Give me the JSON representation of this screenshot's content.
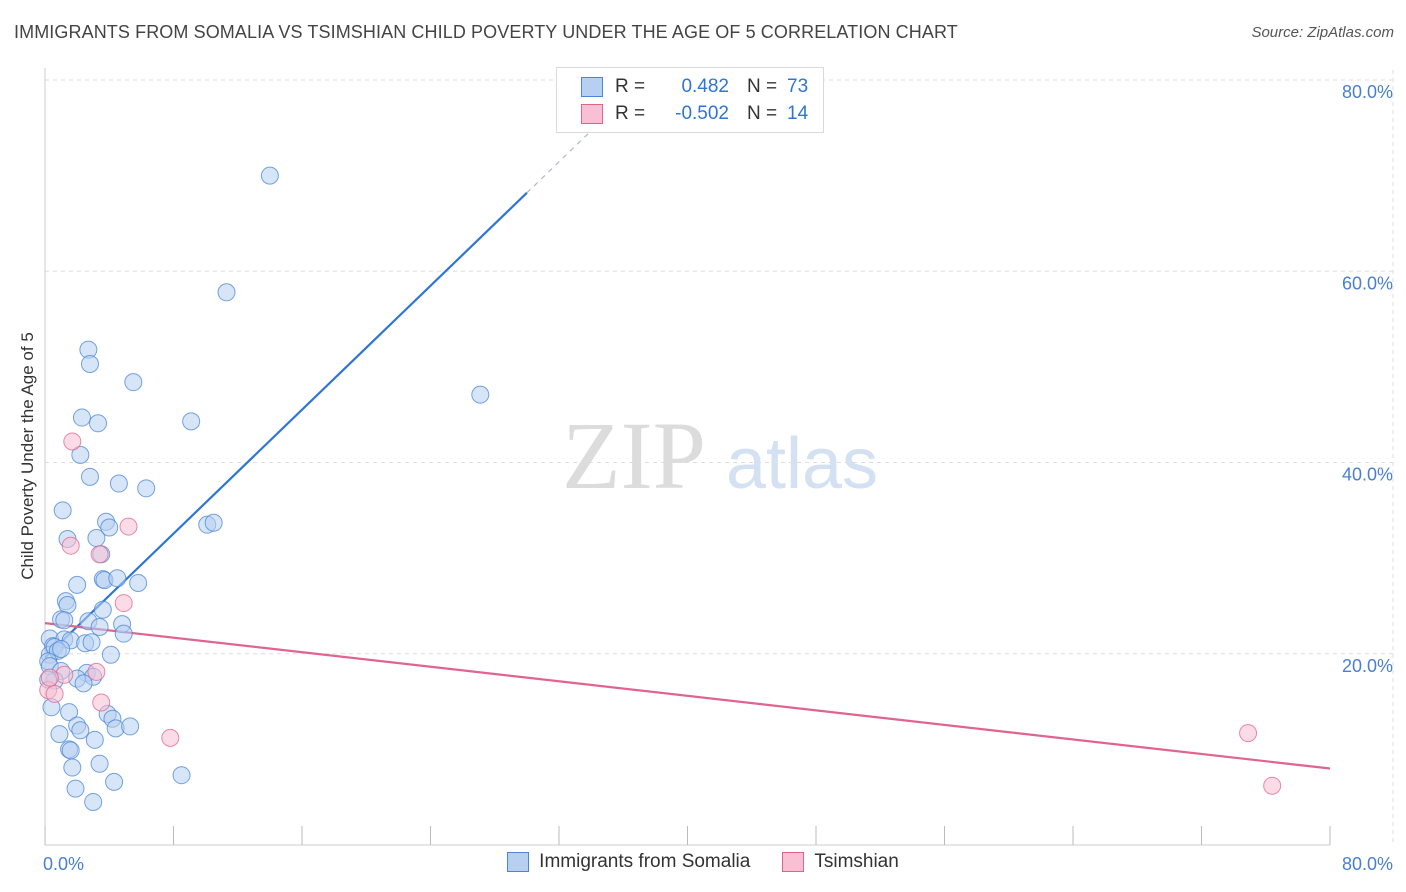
{
  "title": "IMMIGRANTS FROM SOMALIA VS TSIMSHIAN CHILD POVERTY UNDER THE AGE OF 5 CORRELATION CHART",
  "source": "Source: ZipAtlas.com",
  "watermark": {
    "part1": "ZIP",
    "part2": "atlas"
  },
  "colors": {
    "blue": "#4a86d4",
    "blue_fill": "#b7d0f2",
    "blue_line": "#2e75d6",
    "pink": "#e0648e",
    "pink_fill": "#f8c0d2",
    "pink_line": "#e0648e",
    "axis_text": "#4a7fd0"
  },
  "legend": {
    "r_label": "R =",
    "n_label": "N =",
    "series": [
      {
        "name": "Immigrants from Somalia",
        "r": "0.482",
        "n": "73"
      },
      {
        "name": "Tsimshian",
        "r": "-0.502",
        "n": "14"
      }
    ]
  },
  "chart_data": {
    "type": "scatter",
    "title": "IMMIGRANTS FROM SOMALIA VS TSIMSHIAN CHILD POVERTY UNDER THE AGE OF 5 CORRELATION CHART",
    "xlabel": "",
    "ylabel": "Child Poverty Under the Age of 5",
    "xlim": [
      0,
      80
    ],
    "ylim": [
      0,
      80
    ],
    "x_tick_labels": [
      {
        "value": 0,
        "label": "0.0%"
      },
      {
        "value": 80,
        "label": "80.0%"
      }
    ],
    "y_tick_labels": [
      {
        "value": 20,
        "label": "20.0%"
      },
      {
        "value": 40,
        "label": "40.0%"
      },
      {
        "value": 60,
        "label": "60.0%"
      },
      {
        "value": 80,
        "label": "80.0%"
      }
    ],
    "series": [
      {
        "name": "Immigrants from Somalia",
        "color": "#4a86d4",
        "points": [
          [
            14.0,
            70.0
          ],
          [
            11.3,
            57.8
          ],
          [
            27.1,
            47.1
          ],
          [
            2.7,
            51.8
          ],
          [
            2.8,
            50.3
          ],
          [
            5.5,
            48.4
          ],
          [
            2.3,
            44.7
          ],
          [
            3.3,
            44.1
          ],
          [
            9.1,
            44.3
          ],
          [
            2.2,
            40.8
          ],
          [
            2.8,
            38.5
          ],
          [
            4.6,
            37.8
          ],
          [
            6.3,
            37.3
          ],
          [
            1.1,
            35.0
          ],
          [
            3.8,
            33.8
          ],
          [
            4.0,
            33.2
          ],
          [
            10.1,
            33.5
          ],
          [
            10.5,
            33.7
          ],
          [
            1.4,
            32.0
          ],
          [
            3.2,
            32.1
          ],
          [
            3.5,
            30.4
          ],
          [
            2.0,
            27.2
          ],
          [
            3.6,
            27.8
          ],
          [
            3.7,
            27.7
          ],
          [
            4.5,
            27.9
          ],
          [
            5.8,
            27.4
          ],
          [
            1.3,
            25.5
          ],
          [
            1.4,
            25.1
          ],
          [
            3.6,
            24.6
          ],
          [
            1.0,
            23.6
          ],
          [
            1.2,
            23.5
          ],
          [
            2.7,
            23.4
          ],
          [
            3.4,
            22.8
          ],
          [
            4.8,
            23.1
          ],
          [
            0.3,
            21.6
          ],
          [
            0.5,
            20.8
          ],
          [
            1.2,
            21.5
          ],
          [
            1.6,
            21.4
          ],
          [
            2.5,
            21.1
          ],
          [
            2.9,
            21.2
          ],
          [
            0.3,
            19.9
          ],
          [
            0.6,
            20.7
          ],
          [
            0.8,
            20.3
          ],
          [
            1.0,
            20.5
          ],
          [
            0.2,
            19.2
          ],
          [
            4.1,
            19.9
          ],
          [
            0.3,
            18.7
          ],
          [
            1.0,
            18.2
          ],
          [
            2.6,
            18.0
          ],
          [
            3.0,
            17.6
          ],
          [
            0.6,
            17.2
          ],
          [
            2.0,
            17.4
          ],
          [
            2.4,
            16.9
          ],
          [
            0.4,
            14.4
          ],
          [
            1.5,
            13.9
          ],
          [
            2.0,
            12.5
          ],
          [
            2.2,
            12.0
          ],
          [
            3.9,
            13.7
          ],
          [
            4.2,
            13.2
          ],
          [
            4.4,
            12.2
          ],
          [
            5.3,
            12.4
          ],
          [
            0.9,
            11.6
          ],
          [
            3.1,
            11.0
          ],
          [
            1.5,
            10.0
          ],
          [
            1.6,
            9.9
          ],
          [
            1.7,
            8.1
          ],
          [
            3.4,
            8.5
          ],
          [
            8.5,
            7.3
          ],
          [
            4.3,
            6.6
          ],
          [
            1.9,
            5.9
          ],
          [
            3.0,
            4.5
          ],
          [
            0.2,
            17.3
          ],
          [
            4.9,
            22.1
          ]
        ],
        "trend": {
          "x0": 0,
          "y0": 19.6,
          "x1": 30,
          "y1": 68.2,
          "dash_to_x": 34.5,
          "dash_to_y": 75.5
        }
      },
      {
        "name": "Tsimshian",
        "color": "#e0648e",
        "points": [
          [
            1.7,
            42.2
          ],
          [
            1.6,
            31.3
          ],
          [
            3.4,
            30.4
          ],
          [
            5.2,
            33.3
          ],
          [
            4.9,
            25.3
          ],
          [
            1.2,
            17.8
          ],
          [
            3.2,
            18.1
          ],
          [
            0.2,
            16.2
          ],
          [
            0.6,
            15.8
          ],
          [
            3.5,
            14.9
          ],
          [
            7.8,
            11.2
          ],
          [
            74.9,
            11.7
          ],
          [
            76.4,
            6.2
          ],
          [
            0.3,
            17.5
          ]
        ],
        "trend": {
          "x0": 0,
          "y0": 23.2,
          "x1": 80,
          "y1": 8.0
        }
      }
    ]
  }
}
